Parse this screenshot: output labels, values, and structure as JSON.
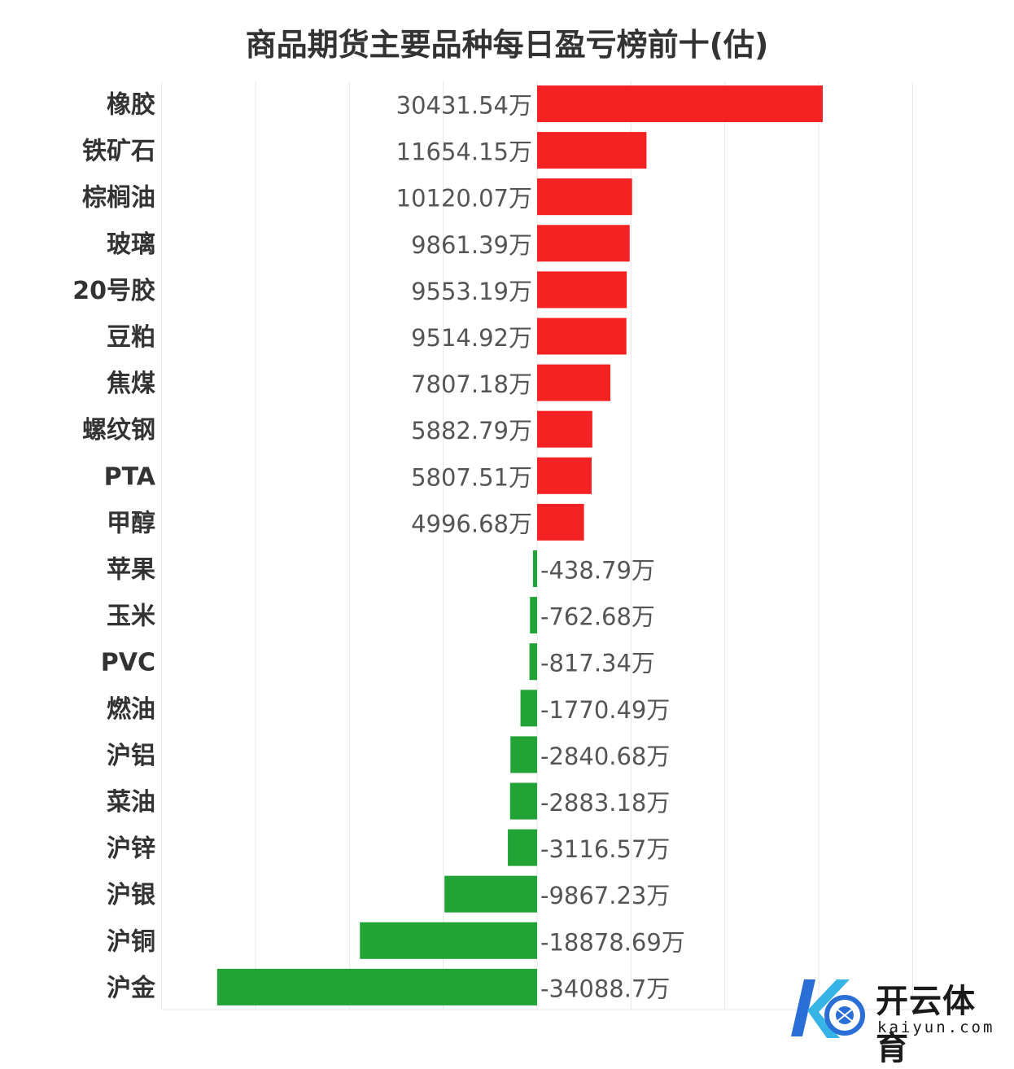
{
  "chart_data": {
    "type": "bar",
    "orientation": "horizontal",
    "title": "商品期货主要品种每日盈亏榜前十(估)",
    "unit": "万",
    "categories": [
      "橡胶",
      "铁矿石",
      "棕榈油",
      "玻璃",
      "20号胶",
      "豆粕",
      "焦煤",
      "螺纹钢",
      "PTA",
      "甲醇",
      "苹果",
      "玉米",
      "PVC",
      "燃油",
      "沪铝",
      "菜油",
      "沪锌",
      "沪银",
      "沪铜",
      "沪金"
    ],
    "values": [
      30431.54,
      11654.15,
      10120.07,
      9861.39,
      9553.19,
      9514.92,
      7807.18,
      5882.79,
      5807.51,
      4996.68,
      -438.79,
      -762.68,
      -817.34,
      -1770.49,
      -2840.68,
      -2883.18,
      -3116.57,
      -9867.23,
      -18878.69,
      -34088.7
    ],
    "value_labels": [
      "30431.54万",
      "11654.15万",
      "10120.07万",
      "9861.39万",
      "9553.19万",
      "9514.92万",
      "7807.18万",
      "5882.79万",
      "5807.51万",
      "4996.68万",
      "-438.79万",
      "-762.68万",
      "-817.34万",
      "-1770.49万",
      "-2840.68万",
      "-2883.18万",
      "-3116.57万",
      "-9867.23万",
      "-18878.69万",
      "-34088.7万"
    ],
    "xlim": [
      -40000,
      40000
    ],
    "grid": true,
    "colors": {
      "positive": "#f42222",
      "negative": "#21a336",
      "grid": "#e6e6e6"
    }
  },
  "watermark": {
    "brand_cn": "开云体育",
    "brand_en": "kaiyun.com"
  }
}
